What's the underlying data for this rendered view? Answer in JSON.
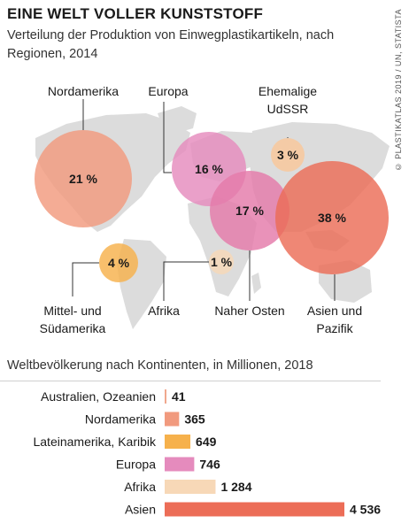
{
  "header": {
    "title": "EINE WELT VOLLER KUNSTSTOFF",
    "subtitle": "Verteilung der Produktion von Einwegplastikartikeln, nach Regionen, 2014",
    "credit": "© PLASTIKATLAS 2019 / UN, STATISTA"
  },
  "colors": {
    "nordamerika": "#f19a7e",
    "mittel_suedamerika": "#f6b14c",
    "europa": "#e58bbd",
    "udssr": "#f9c79a",
    "afrika": "#f7d8b7",
    "naher_osten": "#e47aa9",
    "asien": "#ec6d57",
    "australien": "#f0a88e",
    "map": "#dcdcdc"
  },
  "chart_data": [
    {
      "type": "bubble",
      "title": "EINE WELT VOLLER KUNSTSTOFF",
      "subtitle": "Verteilung der Produktion von Einwegplastikartikeln, nach Regionen, 2014",
      "series": [
        {
          "region": "Nordamerika",
          "value": 21,
          "label": "21 %",
          "color": "#f19a7e"
        },
        {
          "region": "Europa",
          "value": 16,
          "label": "16 %",
          "color": "#e58bbd"
        },
        {
          "region": "Ehemalige UdSSR",
          "value": 3,
          "label": "3 %",
          "color": "#f9c79a"
        },
        {
          "region": "Naher Osten",
          "value": 17,
          "label": "17 %",
          "color": "#e47aa9"
        },
        {
          "region": "Asien und Pazifik",
          "value": 38,
          "label": "38 %",
          "color": "#ec6d57"
        },
        {
          "region": "Mittel- und Südamerika",
          "value": 4,
          "label": "4 %",
          "color": "#f6b14c"
        },
        {
          "region": "Afrika",
          "value": 1,
          "label": "1 %",
          "color": "#f7d8b7"
        }
      ],
      "region_labels": {
        "nordamerika": "Nordamerika",
        "europa": "Europa",
        "udssr_1": "Ehemalige",
        "udssr_2": "UdSSR",
        "mittel_1": "Mittel- und",
        "mittel_2": "Südamerika",
        "afrika": "Afrika",
        "naher_osten": "Naher Osten",
        "asien_1": "Asien und",
        "asien_2": "Pazifik"
      }
    },
    {
      "type": "bar",
      "orientation": "horizontal",
      "title": "Weltbevölkerung nach Kontinenten, in Millionen, 2018",
      "categories": [
        "Australien, Ozeanien",
        "Nordamerika",
        "Lateinamerika, Karibik",
        "Europa",
        "Afrika",
        "Asien"
      ],
      "values": [
        41,
        365,
        649,
        746,
        1284,
        4536
      ],
      "value_labels": [
        "41",
        "365",
        "649",
        "746",
        "1 284",
        "4 536"
      ],
      "colors": [
        "#f0a88e",
        "#f19a7e",
        "#f6b14c",
        "#e58bbd",
        "#f7d8b7",
        "#ec6d57"
      ],
      "xlim": [
        0,
        4536
      ]
    }
  ]
}
